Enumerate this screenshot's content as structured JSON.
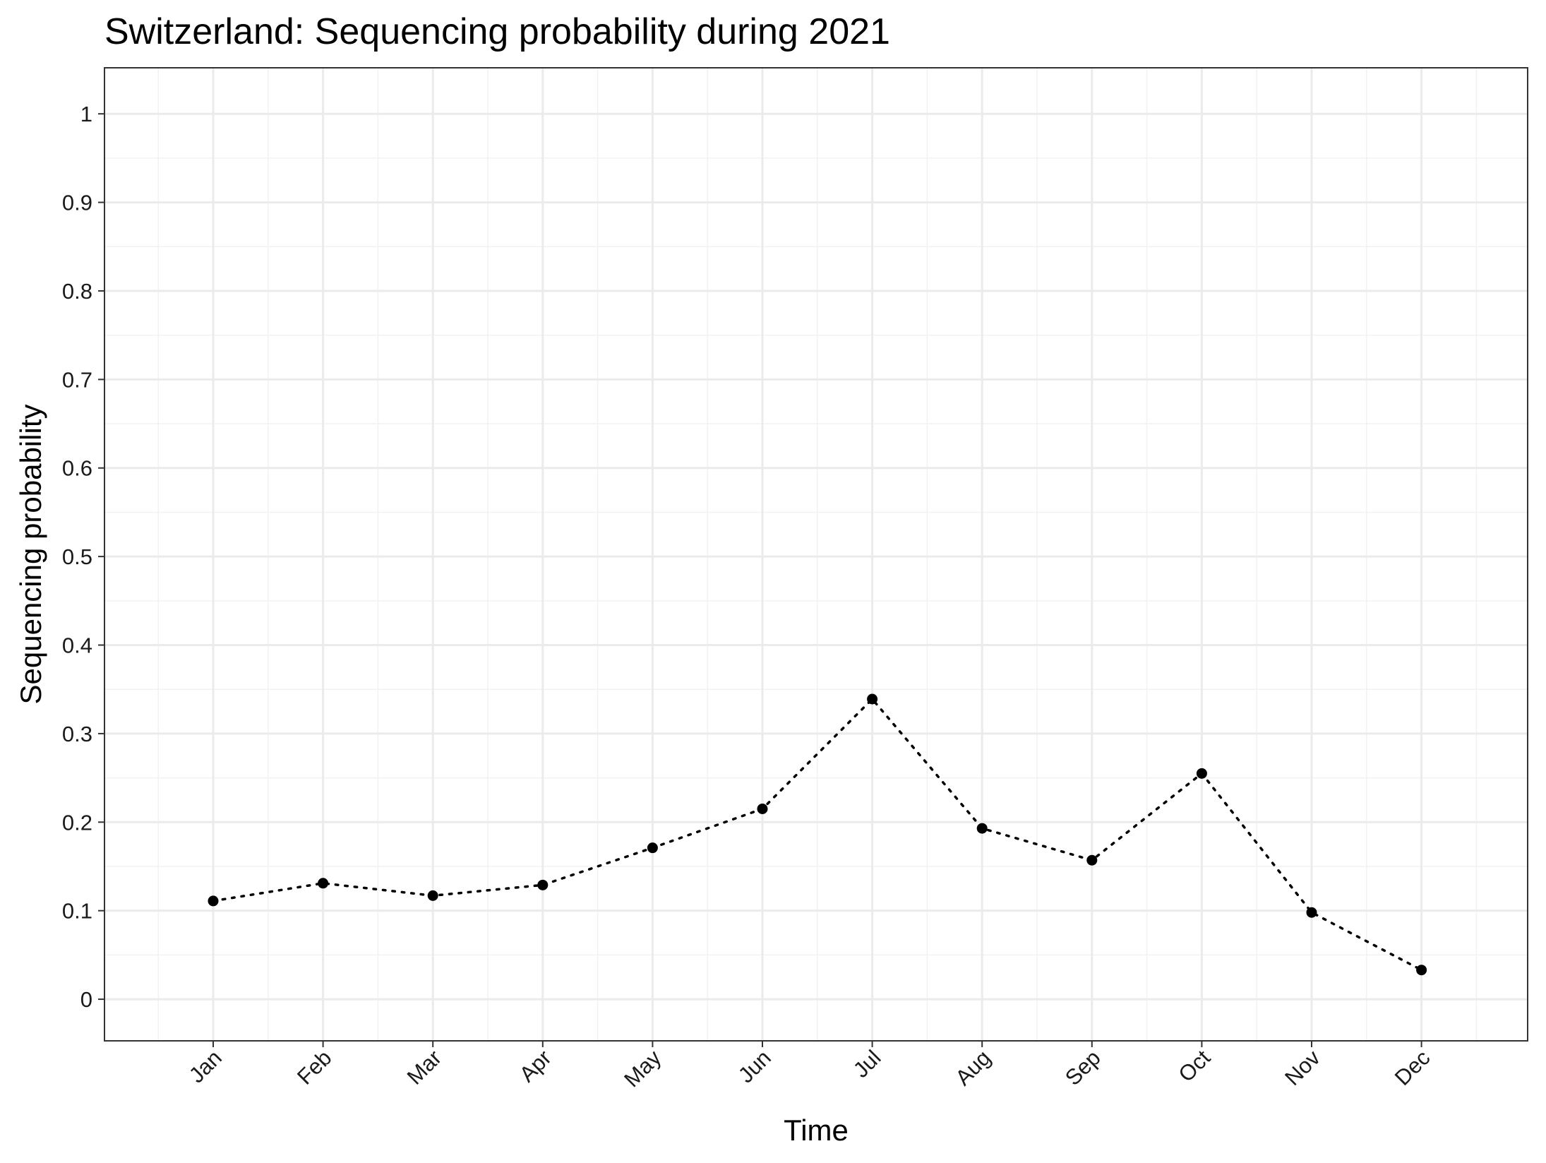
{
  "chart_data": {
    "type": "line",
    "title": "Switzerland: Sequencing probability during 2021",
    "xlabel": "Time",
    "ylabel": "Sequencing probability",
    "categories": [
      "Jan",
      "Feb",
      "Mar",
      "Apr",
      "May",
      "Jun",
      "Jul",
      "Aug",
      "Sep",
      "Oct",
      "Nov",
      "Dec"
    ],
    "series": [
      {
        "values": [
          0.111,
          0.131,
          0.117,
          0.129,
          0.171,
          0.215,
          0.339,
          0.193,
          0.157,
          0.255,
          0.098,
          0.033
        ]
      }
    ],
    "ylim": [
      -0.047,
      1.052
    ],
    "yticks": [
      "0",
      "0.1",
      "0.2",
      "0.3",
      "0.4",
      "0.5",
      "0.6",
      "0.7",
      "0.8",
      "0.9",
      "1"
    ],
    "line_style": "dotted",
    "marker": "filled-circle",
    "grid": true,
    "colors": {
      "line": "#000000",
      "points": "#000000",
      "panel_border": "#333333",
      "grid_major": "#ebebeb",
      "grid_minor": "#f2f2f2"
    }
  }
}
